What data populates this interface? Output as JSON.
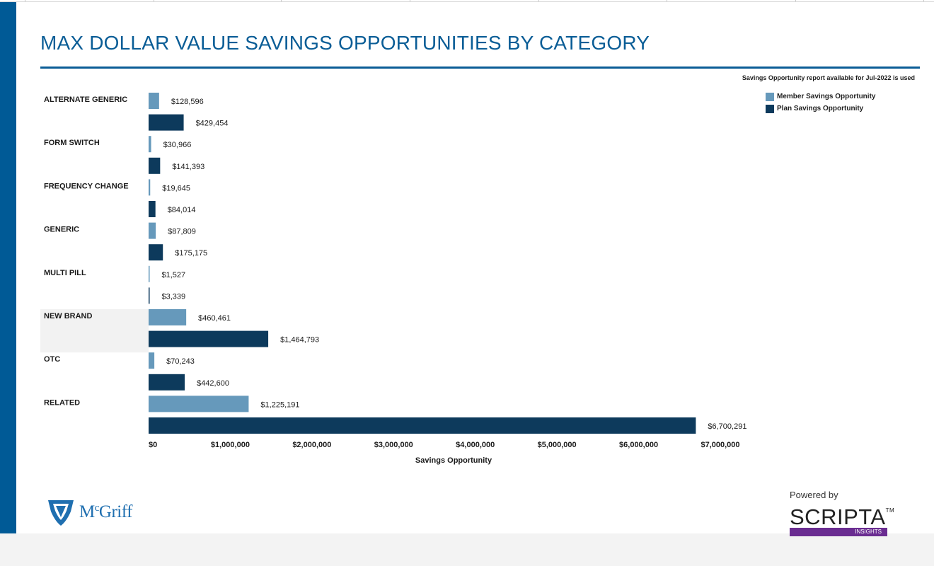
{
  "title": "MAX DOLLAR VALUE SAVINGS OPPORTUNITIES BY CATEGORY",
  "note": "Savings Opportunity report available for Jul-2022 is used",
  "colors": {
    "brand": "#005a96",
    "member": "#6699bb",
    "plan": "#0d3a5c",
    "highlight_row": "#f2f2f2"
  },
  "chart_data": {
    "type": "bar",
    "orientation": "horizontal",
    "categories": [
      "ALTERNATE GENERIC",
      "FORM SWITCH",
      "FREQUENCY CHANGE",
      "GENERIC",
      "MULTI PILL",
      "NEW BRAND",
      "OTC",
      "RELATED"
    ],
    "series": [
      {
        "name": "Member Savings Opportunity",
        "values": [
          128596,
          30966,
          19645,
          87809,
          1527,
          460461,
          70243,
          1225191
        ],
        "labels": [
          "$128,596",
          "$30,966",
          "$19,645",
          "$87,809",
          "$1,527",
          "$460,461",
          "$70,243",
          "$1,225,191"
        ],
        "color": "#6699bb"
      },
      {
        "name": "Plan Savings Opportunity",
        "values": [
          429454,
          141393,
          84014,
          175175,
          3339,
          1464793,
          442600,
          6700291
        ],
        "labels": [
          "$429,454",
          "$141,393",
          "$84,014",
          "$175,175",
          "$3,339",
          "$1,464,793",
          "$442,600",
          "$6,700,291"
        ],
        "color": "#0d3a5c"
      }
    ],
    "xlabel": "Savings Opportunity",
    "xlim": [
      0,
      7000000
    ],
    "xticks": [
      0,
      1000000,
      2000000,
      3000000,
      4000000,
      5000000,
      6000000,
      7000000
    ],
    "xtick_labels": [
      "$0",
      "$1,000,000",
      "$2,000,000",
      "$3,000,000",
      "$4,000,000",
      "$5,000,000",
      "$6,000,000",
      "$7,000,000"
    ],
    "highlighted_category": "NEW BRAND",
    "grid": false,
    "legend": "top-right"
  },
  "logos": {
    "left": "McGriff",
    "right_powered": "Powered by",
    "right_brand": "SCRIPTA",
    "right_tm": "TM",
    "right_sub": "INSIGHTS"
  }
}
